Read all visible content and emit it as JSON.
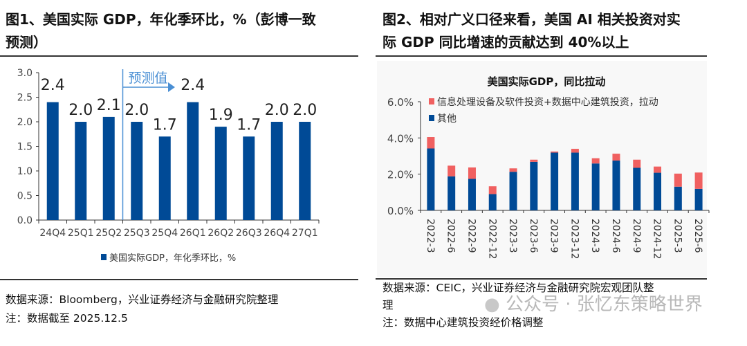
{
  "left": {
    "title_line1": "图1、美国实际 GDP，年化季环比，%（彭博一致",
    "title_line2": "预测）",
    "source": "数据来源：Bloomberg，兴业证券经济与金融研究院整理",
    "note": "注：数据截至 2025.12.5"
  },
  "right": {
    "title_line1": "图2、相对广义口径来看，美国 AI 相关投资对实",
    "title_line2": "际 GDP 同比增速的贡献达到 40%以上",
    "source_line1": "数据来源：CEIC，兴业证券经济与金融研究院宏观团队整",
    "source_line2": "理",
    "note": "注：数据中心建筑投资经价格调整"
  },
  "watermark": "公众号 · 张忆东策略世界",
  "chart_data": [
    {
      "type": "bar",
      "categories": [
        "24Q4",
        "25Q1",
        "25Q2",
        "25Q3",
        "25Q4",
        "26Q1",
        "26Q2",
        "26Q3",
        "26Q4",
        "27Q1"
      ],
      "series": [
        {
          "name": "美国实际GDP，年化季环比，%",
          "values": [
            2.4,
            2.0,
            2.1,
            2.0,
            1.7,
            2.4,
            1.9,
            1.7,
            2.0,
            2.0
          ],
          "color": "#004a96"
        }
      ],
      "data_labels": [
        "2.4",
        "2.0",
        "2.1",
        "2.0",
        "1.7",
        "2.4",
        "1.9",
        "1.7",
        "2.0",
        "2.0"
      ],
      "yticks": [
        "0.0",
        "0.5",
        "1.0",
        "1.5",
        "2.0",
        "2.5",
        "3.0"
      ],
      "ylim": [
        0,
        3.0
      ],
      "annotation": {
        "text": "预测值",
        "starts_at": "25Q3",
        "color": "#4a8fd4"
      },
      "legend": "bottom",
      "grid": false
    },
    {
      "type": "bar",
      "stacked": true,
      "title": "美国实际GDP，同比拉动",
      "categories": [
        "2022-3",
        "2022-6",
        "2022-9",
        "2022-12",
        "2023-3",
        "2023-6",
        "2023-9",
        "2023-12",
        "2024-3",
        "2024-6",
        "2024-9",
        "2024-12",
        "2025-3",
        "2025-6"
      ],
      "series": [
        {
          "name": "其他",
          "values": [
            3.42,
            1.88,
            1.74,
            0.9,
            2.13,
            2.68,
            3.19,
            3.19,
            2.59,
            2.75,
            2.35,
            2.08,
            1.31,
            1.19
          ],
          "color": "#004a96"
        },
        {
          "name": "信息处理设备及软件投资+数据中心建筑投资，拉动",
          "values": [
            0.63,
            0.59,
            0.63,
            0.43,
            0.19,
            0.12,
            0.06,
            0.21,
            0.29,
            0.38,
            0.45,
            0.34,
            0.72,
            0.9
          ],
          "color": "#f06060"
        }
      ],
      "yticks": [
        "0.0%",
        "2.0%",
        "4.0%",
        "6.0%"
      ],
      "ylim": [
        0,
        6.0
      ],
      "legend": "top-left",
      "grid": false
    }
  ]
}
